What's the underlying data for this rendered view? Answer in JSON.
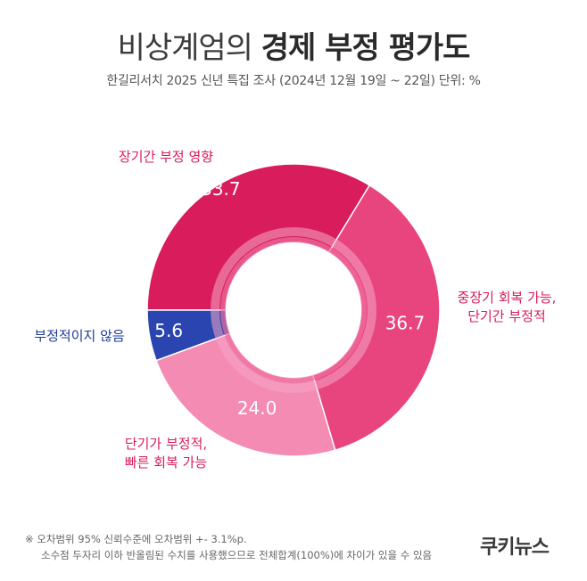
{
  "header": {
    "title_light": "비상계엄의",
    "title_bold": "경제 부정 평가도",
    "subtitle": "한길리서치 2025 신년 특집 조사 (2024년 12월 19일 ~ 22일) 단위: %"
  },
  "chart_data": {
    "type": "pie",
    "title": "비상계엄의 경제 부정 평가도",
    "unit": "%",
    "series": [
      {
        "name": "장기간 부정 영향",
        "value": 33.7,
        "value_label": "33.7",
        "color": "#d81c5c",
        "label_color": "#d81c5c"
      },
      {
        "name": "중장기 회복 가능, 단기간 부정적",
        "label_lines": [
          "중장기 회복 가능,",
          "단기간 부정적"
        ],
        "value": 36.7,
        "value_label": "36.7",
        "color": "#e8447e",
        "label_color": "#d81c5c"
      },
      {
        "name": "단기가 부정적, 빠른 회복 가능",
        "label_lines": [
          "단기가 부정적,",
          "빠른 회복 가능"
        ],
        "value": 24.0,
        "value_label": "24.0",
        "color": "#f38bb3",
        "label_color": "#d81c5c"
      },
      {
        "name": "부정적이지 않음",
        "value": 5.6,
        "value_label": "5.6",
        "color": "#2a44b0",
        "label_color": "#1d3a9a"
      }
    ]
  },
  "footer": {
    "note_line1": "※ 오차범위 95% 신뢰수준에 오차범위 +- 3.1%p.",
    "note_line2": "소수점 두자리 이하 반올림된 수치를 사용했으므로 전체합계(100%)에 차이가 있을 수 있음",
    "logo": "쿠키뉴스"
  }
}
